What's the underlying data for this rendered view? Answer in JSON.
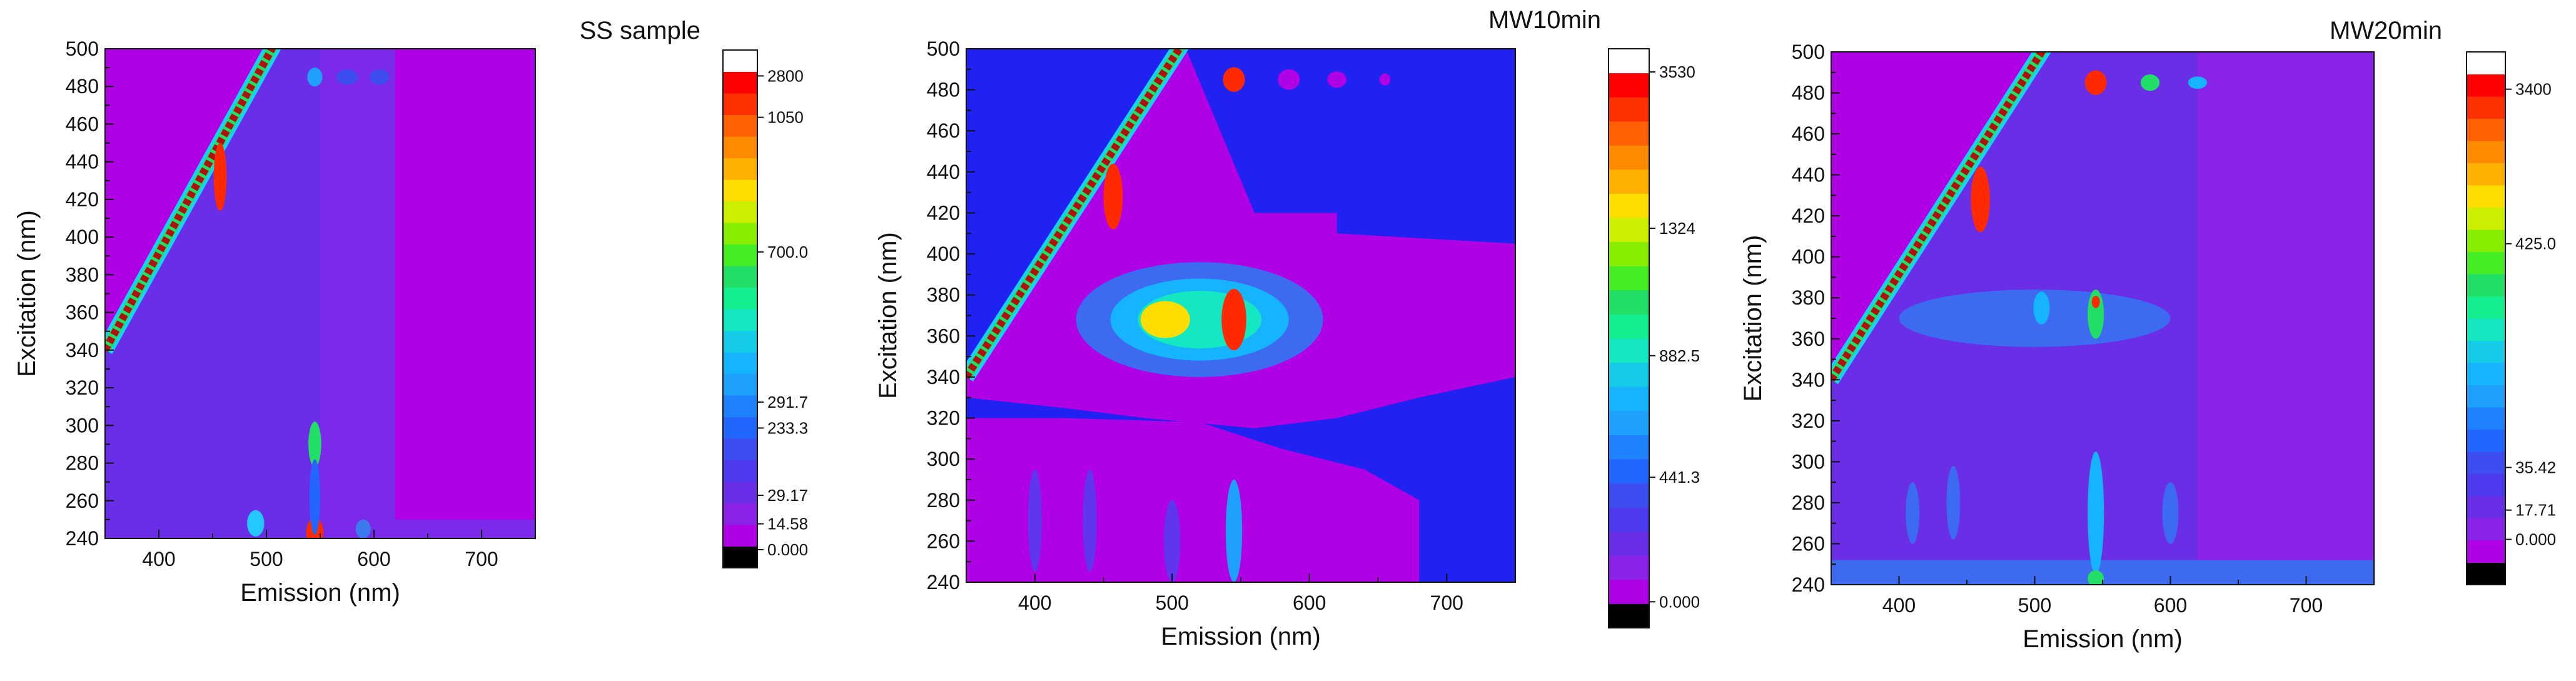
{
  "chart_data": [
    {
      "type": "heatmap",
      "title": "SS sample",
      "xlabel": "Emission (nm)",
      "ylabel": "Excitation  (nm)",
      "xlim": [
        350,
        750
      ],
      "ylim": [
        240,
        500
      ],
      "x_ticks": [
        "400",
        "500",
        "600",
        "700"
      ],
      "y_ticks": [
        "240",
        "260",
        "280",
        "300",
        "320",
        "340",
        "360",
        "380",
        "400",
        "420",
        "440",
        "460",
        "480",
        "500"
      ],
      "colorbar_labels": [
        "2800",
        "1050",
        "700.0",
        "291.7",
        "233.3",
        "29.17",
        "14.58",
        "0.000"
      ],
      "colorbar_label_fracs": [
        0.05,
        0.13,
        0.39,
        0.68,
        0.73,
        0.86,
        0.915,
        0.965
      ],
      "background": "#b000e6",
      "regions": [
        {
          "poly": [
            [
              350,
              500
            ],
            [
              350,
              340
            ],
            [
              500,
              500
            ]
          ],
          "color": "#b000e6"
        },
        {
          "poly": [
            [
              350,
              340
            ],
            [
              500,
              500
            ],
            [
              550,
              500
            ],
            [
              550,
              240
            ],
            [
              350,
              240
            ]
          ],
          "color": "#6a2ee6"
        },
        {
          "poly": [
            [
              550,
              500
            ],
            [
              620,
              500
            ],
            [
              620,
              240
            ],
            [
              550,
              240
            ]
          ],
          "color": "#7a2ae8"
        },
        {
          "poly": [
            [
              620,
              250
            ],
            [
              750,
              250
            ],
            [
              750,
              240
            ],
            [
              620,
              240
            ]
          ],
          "color": "#7a2ae8"
        }
      ],
      "blobs": [
        {
          "x": 457,
          "y": 432,
          "rx": 6,
          "ry": 18,
          "color": "#ff2a00"
        },
        {
          "x": 545,
          "y": 243,
          "rx": 8,
          "ry": 8,
          "color": "#ff2a00"
        },
        {
          "x": 545,
          "y": 290,
          "rx": 6,
          "ry": 12,
          "color": "#22dd66"
        },
        {
          "x": 545,
          "y": 262,
          "rx": 5,
          "ry": 20,
          "color": "#2266ff"
        },
        {
          "x": 545,
          "y": 485,
          "rx": 7,
          "ry": 5,
          "color": "#1ea0ff"
        },
        {
          "x": 575,
          "y": 485,
          "rx": 10,
          "ry": 4,
          "color": "#3c4ef0"
        },
        {
          "x": 605,
          "y": 485,
          "rx": 9,
          "ry": 4,
          "color": "#3c4ef0"
        },
        {
          "x": 490,
          "y": 248,
          "rx": 8,
          "ry": 7,
          "color": "#22c8ff"
        },
        {
          "x": 590,
          "y": 245,
          "rx": 7,
          "ry": 5,
          "color": "#3c7af0"
        }
      ]
    },
    {
      "type": "heatmap",
      "title": "MW10min",
      "xlabel": "Emission (nm)",
      "ylabel": "Excitation (nm)",
      "xlim": [
        350,
        750
      ],
      "ylim": [
        240,
        500
      ],
      "x_ticks": [
        "400",
        "500",
        "600",
        "700"
      ],
      "y_ticks": [
        "240",
        "260",
        "280",
        "300",
        "320",
        "340",
        "360",
        "380",
        "400",
        "420",
        "440",
        "460",
        "480",
        "500"
      ],
      "colorbar_labels": [
        "3530",
        "1324",
        "882.5",
        "441.3",
        "0.000"
      ],
      "colorbar_label_fracs": [
        0.04,
        0.31,
        0.53,
        0.74,
        0.955
      ],
      "background": "#1f22f0",
      "regions": [
        {
          "poly": [
            [
              350,
              340
            ],
            [
              500,
              500
            ],
            [
              510,
              500
            ],
            [
              560,
              420
            ],
            [
              620,
              420
            ],
            [
              620,
              410
            ],
            [
              750,
              405
            ],
            [
              750,
              340
            ],
            [
              680,
              330
            ],
            [
              620,
              320
            ],
            [
              560,
              315
            ],
            [
              480,
              320
            ],
            [
              420,
              325
            ],
            [
              350,
              330
            ]
          ],
          "color": "#b000e6"
        },
        {
          "poly": [
            [
              350,
              320
            ],
            [
              420,
              320
            ],
            [
              520,
              318
            ],
            [
              580,
              305
            ],
            [
              640,
              295
            ],
            [
              680,
              280
            ],
            [
              680,
              240
            ],
            [
              350,
              240
            ]
          ],
          "color": "#b000e6"
        }
      ],
      "blobs": [
        {
          "x": 520,
          "y": 368,
          "rx": 90,
          "ry": 28,
          "color": "#3c6af0"
        },
        {
          "x": 520,
          "y": 368,
          "rx": 65,
          "ry": 20,
          "color": "#16b4ff"
        },
        {
          "x": 520,
          "y": 368,
          "rx": 45,
          "ry": 14,
          "color": "#14e8c0"
        },
        {
          "x": 495,
          "y": 368,
          "rx": 18,
          "ry": 9,
          "color": "#ffdd00"
        },
        {
          "x": 545,
          "y": 368,
          "rx": 9,
          "ry": 15,
          "color": "#ff2a00"
        },
        {
          "x": 457,
          "y": 428,
          "rx": 7,
          "ry": 16,
          "color": "#ff2a00"
        },
        {
          "x": 545,
          "y": 485,
          "rx": 8,
          "ry": 6,
          "color": "#ff2a00"
        },
        {
          "x": 585,
          "y": 485,
          "rx": 8,
          "ry": 5,
          "color": "#b000e6"
        },
        {
          "x": 620,
          "y": 485,
          "rx": 7,
          "ry": 4,
          "color": "#b000e6"
        },
        {
          "x": 655,
          "y": 485,
          "rx": 4,
          "ry": 3,
          "color": "#b000e6"
        },
        {
          "x": 545,
          "y": 265,
          "rx": 6,
          "ry": 25,
          "color": "#1ea0ff"
        },
        {
          "x": 400,
          "y": 270,
          "rx": 5,
          "ry": 25,
          "color": "#5f36ee"
        },
        {
          "x": 440,
          "y": 270,
          "rx": 5,
          "ry": 25,
          "color": "#5f36ee"
        },
        {
          "x": 500,
          "y": 260,
          "rx": 6,
          "ry": 20,
          "color": "#5f36ee"
        }
      ]
    },
    {
      "type": "heatmap",
      "title": "MW20min",
      "xlabel": "Emission (nm)",
      "ylabel": "Excitation (nm)",
      "xlim": [
        350,
        750
      ],
      "ylim": [
        240,
        500
      ],
      "x_ticks": [
        "400",
        "500",
        "600",
        "700"
      ],
      "y_ticks": [
        "240",
        "260",
        "280",
        "300",
        "320",
        "340",
        "360",
        "380",
        "400",
        "420",
        "440",
        "460",
        "480",
        "500"
      ],
      "colorbar_labels": [
        "3400",
        "425.0",
        "35.42",
        "17.71",
        "0.000"
      ],
      "colorbar_label_fracs": [
        0.07,
        0.36,
        0.78,
        0.86,
        0.915
      ],
      "background": "#b000e6",
      "regions": [
        {
          "poly": [
            [
              350,
              340
            ],
            [
              500,
              500
            ],
            [
              620,
              500
            ],
            [
              620,
              240
            ],
            [
              350,
              240
            ]
          ],
          "color": "#6a2ee6"
        },
        {
          "poly": [
            [
              620,
              500
            ],
            [
              750,
              500
            ],
            [
              750,
              240
            ],
            [
              620,
              240
            ]
          ],
          "color": "#8a22e8"
        },
        {
          "poly": [
            [
              350,
              252
            ],
            [
              750,
              252
            ],
            [
              750,
              240
            ],
            [
              350,
              240
            ]
          ],
          "color": "#3c6af0"
        }
      ],
      "blobs": [
        {
          "x": 460,
          "y": 428,
          "rx": 7,
          "ry": 16,
          "color": "#ff2a00"
        },
        {
          "x": 545,
          "y": 485,
          "rx": 8,
          "ry": 6,
          "color": "#ff2a00"
        },
        {
          "x": 585,
          "y": 485,
          "rx": 7,
          "ry": 4,
          "color": "#22dd66"
        },
        {
          "x": 620,
          "y": 485,
          "rx": 7,
          "ry": 3,
          "color": "#16b4ff"
        },
        {
          "x": 500,
          "y": 370,
          "rx": 100,
          "ry": 14,
          "color": "#3c6af0"
        },
        {
          "x": 545,
          "y": 372,
          "rx": 6,
          "ry": 12,
          "color": "#22dd66"
        },
        {
          "x": 545,
          "y": 378,
          "rx": 3,
          "ry": 3,
          "color": "#ff2a00"
        },
        {
          "x": 505,
          "y": 375,
          "rx": 6,
          "ry": 8,
          "color": "#16b4ff"
        },
        {
          "x": 545,
          "y": 275,
          "rx": 6,
          "ry": 30,
          "color": "#16b4ff"
        },
        {
          "x": 545,
          "y": 243,
          "rx": 6,
          "ry": 4,
          "color": "#22dd66"
        },
        {
          "x": 440,
          "y": 280,
          "rx": 5,
          "ry": 18,
          "color": "#3c6af0"
        },
        {
          "x": 410,
          "y": 275,
          "rx": 5,
          "ry": 15,
          "color": "#3c6af0"
        },
        {
          "x": 600,
          "y": 275,
          "rx": 6,
          "ry": 15,
          "color": "#3c6af0"
        }
      ]
    }
  ],
  "colorscale": [
    "#000000",
    "#b000e6",
    "#8a22e8",
    "#6a2ee6",
    "#4d3aee",
    "#3c4ef0",
    "#2266ff",
    "#1e82ff",
    "#1ea0ff",
    "#16b4ff",
    "#14cce8",
    "#14e8c0",
    "#14ee90",
    "#22dd66",
    "#44ee22",
    "#88ee00",
    "#ccee00",
    "#ffdd00",
    "#ffb000",
    "#ff8a00",
    "#ff6000",
    "#ff3000",
    "#ff0000",
    "#ffffff"
  ]
}
